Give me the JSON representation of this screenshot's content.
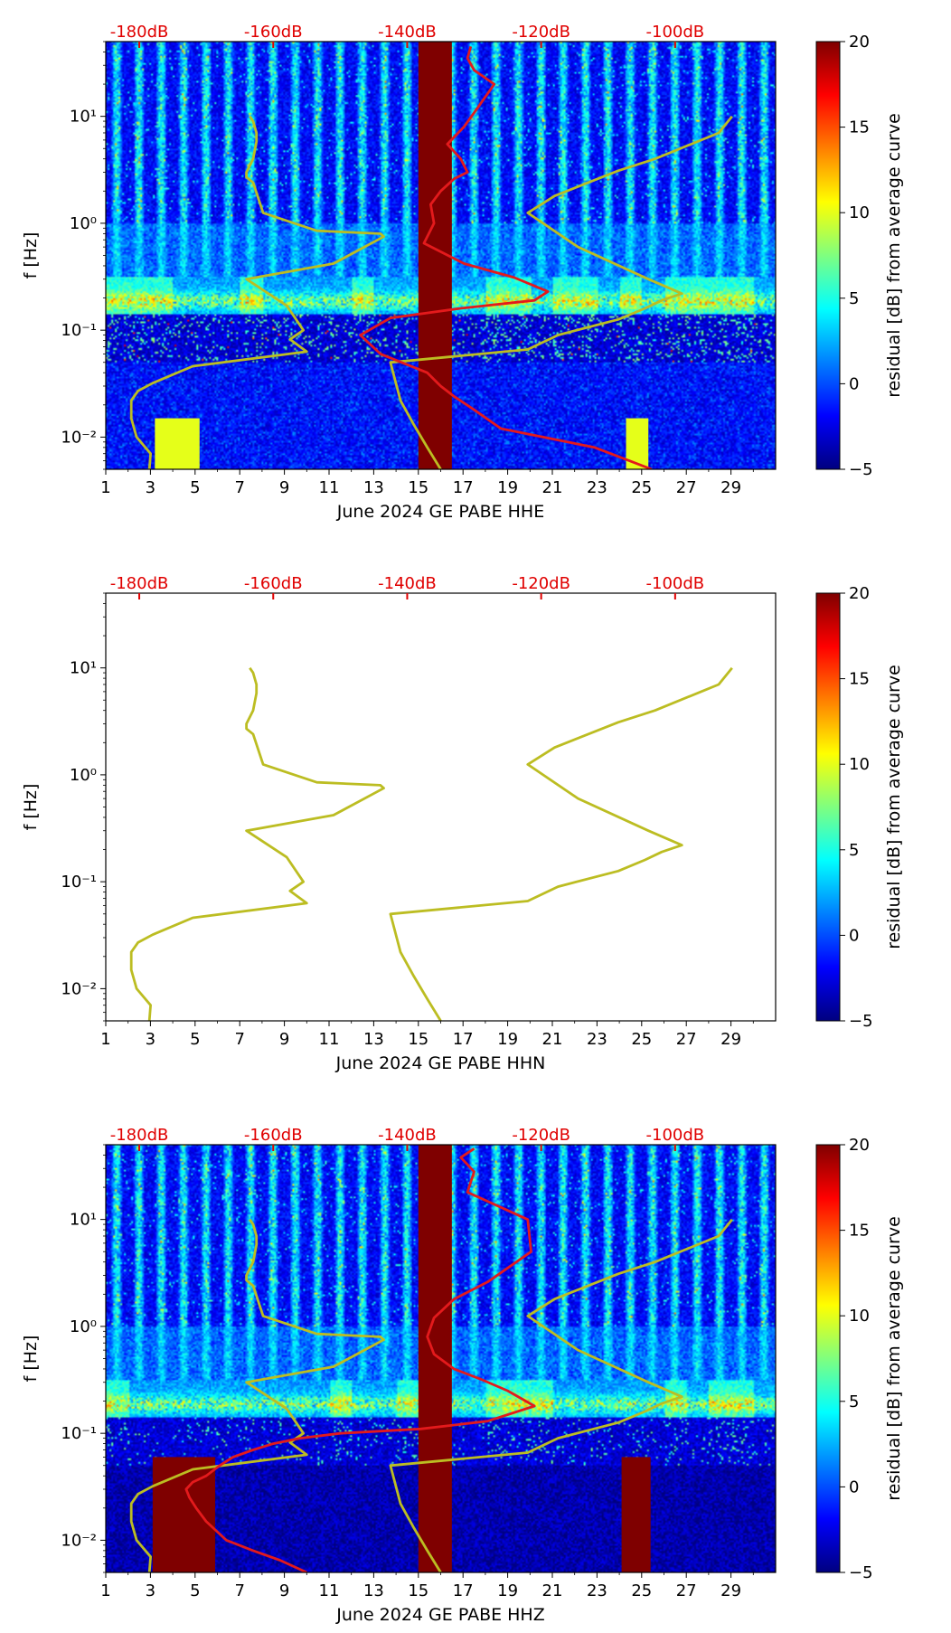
{
  "figure": {
    "colormap_stops": [
      "#00007f",
      "#0000ff",
      "#007fff",
      "#00ffff",
      "#7fff7f",
      "#ffff00",
      "#ff7f00",
      "#ff0000",
      "#7f0000"
    ],
    "colors": {
      "psd_curve": "#e31a1c",
      "noise_model": "#bcbd22",
      "db_axis": "#e00000",
      "saturated": "#7f0000"
    }
  },
  "chart_data": [
    {
      "type": "heatmap",
      "channel": "HHE",
      "title": "",
      "xlabel": "June 2024 GE PABE  HHE",
      "ylabel": "f [Hz]",
      "xlim": [
        1,
        31
      ],
      "x_ticks": [
        "1",
        "3",
        "5",
        "7",
        "9",
        "11",
        "13",
        "15",
        "17",
        "19",
        "21",
        "23",
        "25",
        "27",
        "29"
      ],
      "y_scale": "log",
      "ylim": [
        0.005,
        50
      ],
      "y_ticks": [
        {
          "value": 0.01,
          "label": "10⁻²"
        },
        {
          "value": 0.1,
          "label": "10⁻¹"
        },
        {
          "value": 1,
          "label": "10⁰"
        },
        {
          "value": 10,
          "label": "10¹"
        }
      ],
      "top_axis": {
        "range_db": [
          -185,
          -85
        ],
        "ticks": [
          "-180dB",
          "-160dB",
          "-140dB",
          "-120dB",
          "-100dB"
        ],
        "tick_values": [
          -180,
          -160,
          -140,
          -120,
          -100
        ]
      },
      "colorbar": {
        "label": "residual [dB] from average curve",
        "range": [
          -5,
          20
        ],
        "ticks": [
          "−5",
          "0",
          "5",
          "10",
          "15",
          "20"
        ],
        "tick_values": [
          -5,
          0,
          5,
          10,
          15,
          20
        ]
      },
      "has_spectrogram": true,
      "data_gaps": [
        [
          15.0,
          16.5
        ]
      ],
      "saturated_blocks": [],
      "highlight_blocks": [
        {
          "x": [
            3.2,
            5.2
          ],
          "f": [
            0.005,
            0.015
          ]
        },
        {
          "x": [
            24.3,
            25.3
          ],
          "f": [
            0.005,
            0.015
          ]
        }
      ],
      "series": [
        {
          "name": "low noise model",
          "db": [
            -178.5,
            -178.3,
            -180.4,
            -181.2,
            -181.2,
            -180.2,
            -178.0,
            -172.0,
            -155.0,
            -157.5,
            -155.5,
            -158.0,
            -164.0,
            -151.0,
            -143.5,
            -144.0,
            -153.5,
            -161.5,
            -163.0,
            -164.0,
            -164.0,
            -163.0,
            -162.5,
            -162.5,
            -163.0,
            -163.5
          ],
          "f": [
            0.005,
            0.007,
            0.01,
            0.015,
            0.022,
            0.027,
            0.032,
            0.046,
            0.063,
            0.082,
            0.1,
            0.17,
            0.3,
            0.42,
            0.75,
            0.8,
            0.85,
            1.25,
            2.4,
            2.7,
            3.0,
            4.0,
            5.8,
            7.0,
            9.0,
            10.0
          ]
        },
        {
          "name": "high noise model",
          "db": [
            -135.0,
            -137.0,
            -139.0,
            -141.0,
            -142.5,
            -122.0,
            -117.5,
            -108.5,
            -104.5,
            -102.0,
            -99.0,
            -104.0,
            -114.5,
            -122.0,
            -118.0,
            -108.5,
            -103.0,
            -93.5,
            -91.5
          ],
          "f": [
            0.005,
            0.008,
            0.013,
            0.022,
            0.05,
            0.066,
            0.09,
            0.126,
            0.16,
            0.19,
            0.22,
            0.3,
            0.6,
            1.25,
            1.8,
            3.1,
            4.0,
            7.0,
            10.0
          ]
        },
        {
          "name": "PSD mean",
          "db": [
            -103.5,
            -112.0,
            -126.0,
            -130.0,
            -133.0,
            -135.0,
            -137.0,
            -144.0,
            -147.0,
            -142.5,
            -132.0,
            -121.0,
            -119.0,
            -124.0,
            -131.5,
            -137.5,
            -136.0,
            -136.5,
            -135.0,
            -133.0,
            -131.0,
            -132.0,
            -134.0,
            -131.5,
            -129.5,
            -127.0,
            -130.0,
            -131.0,
            -130.5
          ],
          "f": [
            0.005,
            0.008,
            0.012,
            0.018,
            0.024,
            0.03,
            0.04,
            0.06,
            0.09,
            0.13,
            0.16,
            0.19,
            0.23,
            0.31,
            0.42,
            0.65,
            1.0,
            1.5,
            2.0,
            2.6,
            3.0,
            4.0,
            5.5,
            8.0,
            12.0,
            20.0,
            27.0,
            35.0,
            45.0
          ]
        }
      ]
    },
    {
      "type": "heatmap",
      "channel": "HHN",
      "title": "",
      "xlabel": "June 2024 GE PABE  HHN",
      "ylabel": "f [Hz]",
      "xlim": [
        1,
        31
      ],
      "x_ticks": [
        "1",
        "3",
        "5",
        "7",
        "9",
        "11",
        "13",
        "15",
        "17",
        "19",
        "21",
        "23",
        "25",
        "27",
        "29"
      ],
      "y_scale": "log",
      "ylim": [
        0.005,
        50
      ],
      "y_ticks": [
        {
          "value": 0.01,
          "label": "10⁻²"
        },
        {
          "value": 0.1,
          "label": "10⁻¹"
        },
        {
          "value": 1,
          "label": "10⁰"
        },
        {
          "value": 10,
          "label": "10¹"
        }
      ],
      "top_axis": {
        "range_db": [
          -185,
          -85
        ],
        "ticks": [
          "-180dB",
          "-160dB",
          "-140dB",
          "-120dB",
          "-100dB"
        ],
        "tick_values": [
          -180,
          -160,
          -140,
          -120,
          -100
        ]
      },
      "colorbar": {
        "label": "residual [dB] from average curve",
        "range": [
          -5,
          20
        ],
        "ticks": [
          "−5",
          "0",
          "5",
          "10",
          "15",
          "20"
        ],
        "tick_values": [
          -5,
          0,
          5,
          10,
          15,
          20
        ]
      },
      "has_spectrogram": false,
      "data_gaps": [],
      "saturated_blocks": [],
      "highlight_blocks": [],
      "series": [
        {
          "name": "low noise model",
          "db": [
            -178.5,
            -178.3,
            -180.4,
            -181.2,
            -181.2,
            -180.2,
            -178.0,
            -172.0,
            -155.0,
            -157.5,
            -155.5,
            -158.0,
            -164.0,
            -151.0,
            -143.5,
            -144.0,
            -153.5,
            -161.5,
            -163.0,
            -164.0,
            -164.0,
            -163.0,
            -162.5,
            -162.5,
            -163.0,
            -163.5
          ],
          "f": [
            0.005,
            0.007,
            0.01,
            0.015,
            0.022,
            0.027,
            0.032,
            0.046,
            0.063,
            0.082,
            0.1,
            0.17,
            0.3,
            0.42,
            0.75,
            0.8,
            0.85,
            1.25,
            2.4,
            2.7,
            3.0,
            4.0,
            5.8,
            7.0,
            9.0,
            10.0
          ]
        },
        {
          "name": "high noise model",
          "db": [
            -135.0,
            -137.0,
            -139.0,
            -141.0,
            -142.5,
            -122.0,
            -117.5,
            -108.5,
            -104.5,
            -102.0,
            -99.0,
            -104.0,
            -114.5,
            -122.0,
            -118.0,
            -108.5,
            -103.0,
            -93.5,
            -91.5
          ],
          "f": [
            0.005,
            0.008,
            0.013,
            0.022,
            0.05,
            0.066,
            0.09,
            0.126,
            0.16,
            0.19,
            0.22,
            0.3,
            0.6,
            1.25,
            1.8,
            3.1,
            4.0,
            7.0,
            10.0
          ]
        }
      ]
    },
    {
      "type": "heatmap",
      "channel": "HHZ",
      "title": "",
      "xlabel": "June 2024 GE PABE  HHZ",
      "ylabel": "f [Hz]",
      "xlim": [
        1,
        31
      ],
      "x_ticks": [
        "1",
        "3",
        "5",
        "7",
        "9",
        "11",
        "13",
        "15",
        "17",
        "19",
        "21",
        "23",
        "25",
        "27",
        "29"
      ],
      "y_scale": "log",
      "ylim": [
        0.005,
        50
      ],
      "y_ticks": [
        {
          "value": 0.01,
          "label": "10⁻²"
        },
        {
          "value": 0.1,
          "label": "10⁻¹"
        },
        {
          "value": 1,
          "label": "10⁰"
        },
        {
          "value": 10,
          "label": "10¹"
        }
      ],
      "top_axis": {
        "range_db": [
          -185,
          -85
        ],
        "ticks": [
          "-180dB",
          "-160dB",
          "-140dB",
          "-120dB",
          "-100dB"
        ],
        "tick_values": [
          -180,
          -160,
          -140,
          -120,
          -100
        ]
      },
      "colorbar": {
        "label": "residual [dB] from average curve",
        "range": [
          -5,
          20
        ],
        "ticks": [
          "−5",
          "0",
          "5",
          "10",
          "15",
          "20"
        ],
        "tick_values": [
          -5,
          0,
          5,
          10,
          15,
          20
        ]
      },
      "has_spectrogram": true,
      "data_gaps": [
        [
          15.0,
          16.5
        ]
      ],
      "saturated_blocks": [
        {
          "x": [
            3.1,
            5.9
          ],
          "f": [
            0.005,
            0.06
          ]
        },
        {
          "x": [
            24.1,
            25.4
          ],
          "f": [
            0.005,
            0.06
          ]
        }
      ],
      "highlight_blocks": [],
      "series": [
        {
          "name": "low noise model",
          "db": [
            -178.5,
            -178.3,
            -180.4,
            -181.2,
            -181.2,
            -180.2,
            -178.0,
            -172.0,
            -155.0,
            -157.5,
            -155.5,
            -158.0,
            -164.0,
            -151.0,
            -143.5,
            -144.0,
            -153.5,
            -161.5,
            -163.0,
            -164.0,
            -164.0,
            -163.0,
            -162.5,
            -162.5,
            -163.0,
            -163.5
          ],
          "f": [
            0.005,
            0.007,
            0.01,
            0.015,
            0.022,
            0.027,
            0.032,
            0.046,
            0.063,
            0.082,
            0.1,
            0.17,
            0.3,
            0.42,
            0.75,
            0.8,
            0.85,
            1.25,
            2.4,
            2.7,
            3.0,
            4.0,
            5.8,
            7.0,
            9.0,
            10.0
          ]
        },
        {
          "name": "high noise model",
          "db": [
            -135.0,
            -137.0,
            -139.0,
            -141.0,
            -142.5,
            -122.0,
            -117.5,
            -108.5,
            -104.5,
            -102.0,
            -99.0,
            -104.0,
            -114.5,
            -122.0,
            -118.0,
            -108.5,
            -103.0,
            -93.5,
            -91.5
          ],
          "f": [
            0.005,
            0.008,
            0.013,
            0.022,
            0.05,
            0.066,
            0.09,
            0.126,
            0.16,
            0.19,
            0.22,
            0.3,
            0.6,
            1.25,
            1.8,
            3.1,
            4.0,
            7.0,
            10.0
          ]
        },
        {
          "name": "PSD mean",
          "db": [
            -155.0,
            -159.0,
            -163.0,
            -167.0,
            -170.0,
            -171.5,
            -172.5,
            -173.0,
            -172.0,
            -170.0,
            -168.0,
            -166.0,
            -163.0,
            -160.0,
            -156.0,
            -150.0,
            -138.0,
            -128.0,
            -121.0,
            -125.0,
            -129.0,
            -133.0,
            -136.0,
            -137.0,
            -136.0,
            -133.0,
            -128.0,
            -121.5,
            -122.0,
            -131.0,
            -130.0,
            -132.0,
            -130.0
          ],
          "f": [
            0.005,
            0.0065,
            0.008,
            0.01,
            0.015,
            0.02,
            0.025,
            0.03,
            0.035,
            0.04,
            0.05,
            0.06,
            0.07,
            0.08,
            0.09,
            0.1,
            0.11,
            0.13,
            0.18,
            0.25,
            0.32,
            0.4,
            0.55,
            0.8,
            1.2,
            1.8,
            2.6,
            5.0,
            10.0,
            18.0,
            28.0,
            38.0,
            46.0
          ]
        }
      ]
    }
  ]
}
